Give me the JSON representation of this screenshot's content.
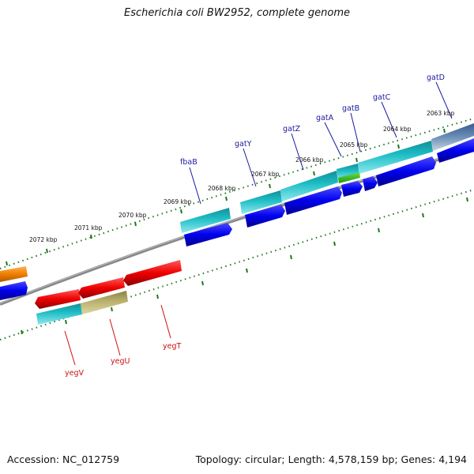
{
  "header": {
    "title": "Escherichia coli BW2952, complete genome"
  },
  "footer": {
    "accession": "Accession: NC_012759",
    "topology": "Topology: circular; Length: 4,578,159 bp; Genes: 4,194"
  },
  "ruler": {
    "kbp_labels": [
      "2063 kbp",
      "2064 kbp",
      "2065 kbp",
      "2066 kbp",
      "2067 kbp",
      "2068 kbp",
      "2069 kbp",
      "2070 kbp",
      "2071 kbp",
      "2072 kbp"
    ]
  },
  "genes": {
    "forward": [
      "gatD",
      "gatC",
      "gatB",
      "gatA",
      "gatZ",
      "gatY",
      "fbaB"
    ],
    "reverse": [
      "yegT",
      "yegU",
      "yegV"
    ]
  },
  "colors": {
    "cds_blue": "#0000ee",
    "cds_red": "#ee0000",
    "cds_cyan": "#1bbcc4",
    "cds_olive": "#b7ad6a",
    "cds_orange": "#f07f00",
    "cds_green": "#33bb22",
    "tick_green": "#1f7a1f",
    "backbone": "#888888"
  }
}
